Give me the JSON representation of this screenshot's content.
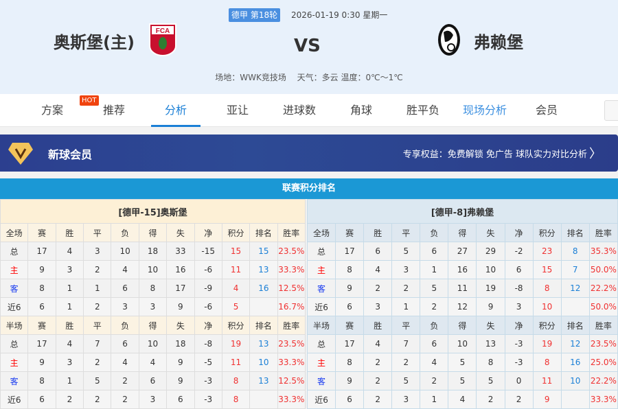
{
  "match": {
    "league_round": "德甲 第18轮",
    "datetime": "2026-01-19 0:30 星期一",
    "home": "奥斯堡(主)",
    "away": "弗赖堡",
    "vs": "VS",
    "venue": "场地：WWK竞技场　 天气：多云 温度：0℃～1℃",
    "home_logo_text": "FCA"
  },
  "nav": {
    "items": [
      "方案",
      "推荐",
      "分析",
      "亚让",
      "进球数",
      "角球",
      "胜平负",
      "现场分析",
      "会员"
    ],
    "active": "分析",
    "hot": "HOT"
  },
  "banner": {
    "title": "新球会员",
    "benefits": "专享权益：免费解锁 免广告 球队实力对比分析"
  },
  "section_title": "联赛积分排名",
  "colors": {
    "accent": "#1a7fd6",
    "section": "#1b98d5",
    "banner": "#2c3f8f"
  },
  "tables": [
    {
      "title": "[德甲-15]奥斯堡",
      "full_header": [
        "全场",
        "赛",
        "胜",
        "平",
        "负",
        "得",
        "失",
        "净",
        "积分",
        "排名",
        "胜率"
      ],
      "full": [
        [
          "总",
          "17",
          "4",
          "3",
          "10",
          "18",
          "33",
          "-15",
          "15",
          "15",
          "23.5%"
        ],
        [
          "主",
          "9",
          "3",
          "2",
          "4",
          "10",
          "16",
          "-6",
          "11",
          "13",
          "33.3%"
        ],
        [
          "客",
          "8",
          "1",
          "1",
          "6",
          "8",
          "17",
          "-9",
          "4",
          "16",
          "12.5%"
        ],
        [
          "近6",
          "6",
          "1",
          "2",
          "3",
          "3",
          "9",
          "-6",
          "5",
          "",
          "16.7%"
        ]
      ],
      "half_header": [
        "半场",
        "赛",
        "胜",
        "平",
        "负",
        "得",
        "失",
        "净",
        "积分",
        "排名",
        "胜率"
      ],
      "half": [
        [
          "总",
          "17",
          "4",
          "7",
          "6",
          "10",
          "18",
          "-8",
          "19",
          "13",
          "23.5%"
        ],
        [
          "主",
          "9",
          "3",
          "2",
          "4",
          "4",
          "9",
          "-5",
          "11",
          "10",
          "33.3%"
        ],
        [
          "客",
          "8",
          "1",
          "5",
          "2",
          "6",
          "9",
          "-3",
          "8",
          "13",
          "12.5%"
        ],
        [
          "近6",
          "6",
          "2",
          "2",
          "2",
          "3",
          "6",
          "-3",
          "8",
          "",
          "33.3%"
        ]
      ]
    },
    {
      "title": "[德甲-8]弗赖堡",
      "full_header": [
        "全场",
        "赛",
        "胜",
        "平",
        "负",
        "得",
        "失",
        "净",
        "积分",
        "排名",
        "胜率"
      ],
      "full": [
        [
          "总",
          "17",
          "6",
          "5",
          "6",
          "27",
          "29",
          "-2",
          "23",
          "8",
          "35.3%"
        ],
        [
          "主",
          "8",
          "4",
          "3",
          "1",
          "16",
          "10",
          "6",
          "15",
          "7",
          "50.0%"
        ],
        [
          "客",
          "9",
          "2",
          "2",
          "5",
          "11",
          "19",
          "-8",
          "8",
          "12",
          "22.2%"
        ],
        [
          "近6",
          "6",
          "3",
          "1",
          "2",
          "12",
          "9",
          "3",
          "10",
          "",
          "50.0%"
        ]
      ],
      "half_header": [
        "半场",
        "赛",
        "胜",
        "平",
        "负",
        "得",
        "失",
        "净",
        "积分",
        "排名",
        "胜率"
      ],
      "half": [
        [
          "总",
          "17",
          "4",
          "7",
          "6",
          "10",
          "13",
          "-3",
          "19",
          "12",
          "23.5%"
        ],
        [
          "主",
          "8",
          "2",
          "2",
          "4",
          "5",
          "8",
          "-3",
          "8",
          "16",
          "25.0%"
        ],
        [
          "客",
          "9",
          "2",
          "5",
          "2",
          "5",
          "5",
          "0",
          "11",
          "10",
          "22.2%"
        ],
        [
          "近6",
          "6",
          "2",
          "3",
          "1",
          "4",
          "2",
          "2",
          "9",
          "",
          "33.3%"
        ]
      ]
    }
  ]
}
